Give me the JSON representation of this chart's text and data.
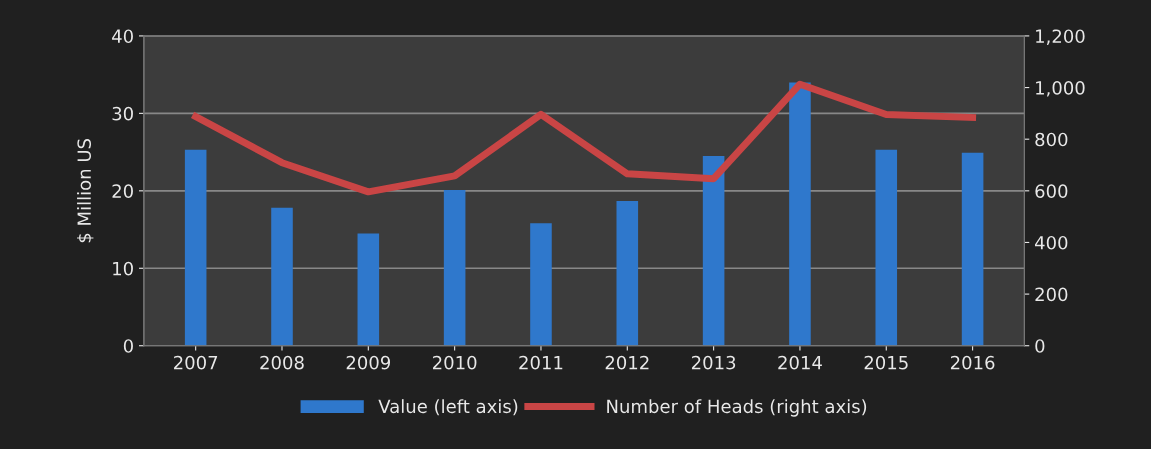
{
  "chart_data": {
    "type": "bar",
    "ylabel": "$ Million US",
    "categories": [
      "2007",
      "2008",
      "2009",
      "2010",
      "2011",
      "2012",
      "2013",
      "2014",
      "2015",
      "2016"
    ],
    "series": [
      {
        "name": "Value (left axis)",
        "color": "#2f78cc",
        "values": [
          25.3,
          17.8,
          14.5,
          20.1,
          15.8,
          18.7,
          24.5,
          34,
          25.3,
          24.9
        ]
      },
      {
        "name": "Number of Heads (right axis)",
        "type": "line",
        "axis": "y2",
        "color": "#c94545",
        "values": [
          888,
          709,
          596,
          658,
          896,
          666,
          647,
          1013,
          896,
          884
        ]
      }
    ],
    "ylim": [
      0,
      40
    ],
    "yticks": [
      0,
      10,
      20,
      30,
      40
    ],
    "y2lim": [
      0,
      1200
    ],
    "y2ticks": [
      0,
      {
        "value": 200,
        "label": "200"
      },
      {
        "value": 400,
        "label": "400"
      },
      {
        "value": 600,
        "label": "600"
      },
      {
        "value": 800,
        "label": "800"
      },
      {
        "value": 1000,
        "label": "1,000"
      },
      {
        "value": 1200,
        "label": "1,200"
      }
    ],
    "grid": "y",
    "legend": "bottom",
    "marker": "none",
    "line_style": "solid"
  }
}
